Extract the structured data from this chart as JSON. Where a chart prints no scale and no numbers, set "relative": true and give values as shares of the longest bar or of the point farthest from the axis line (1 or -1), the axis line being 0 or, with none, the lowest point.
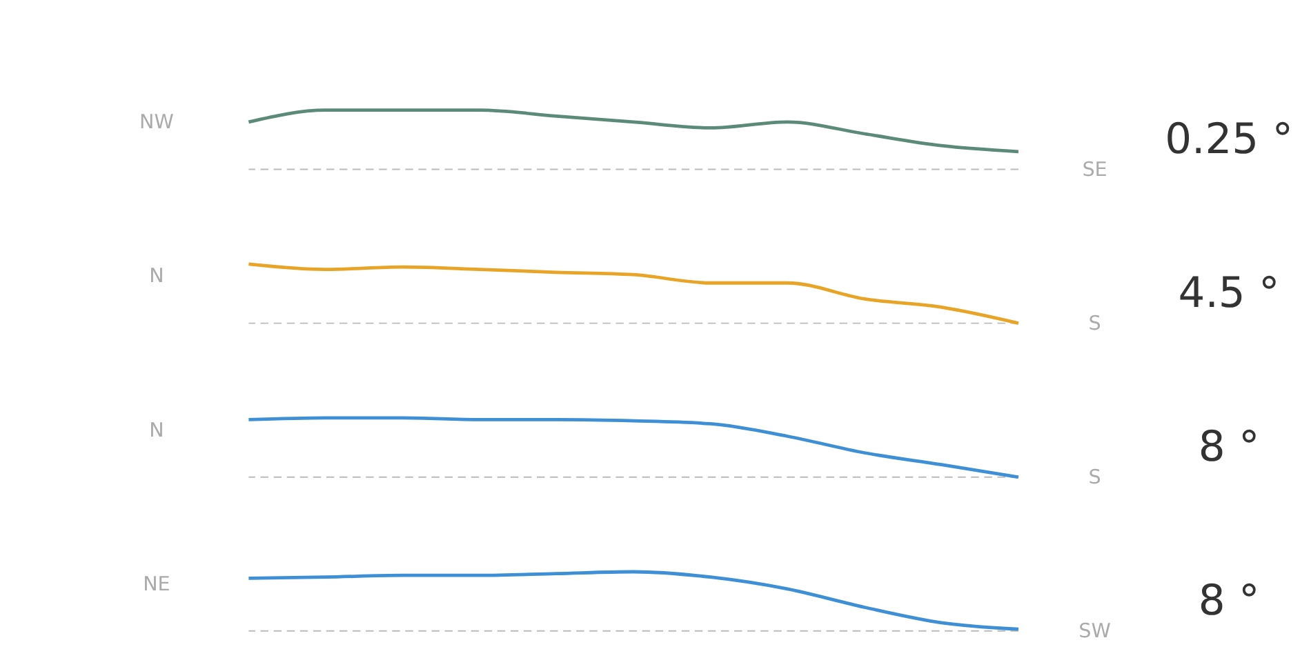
{
  "chart_data": [
    {
      "type": "line",
      "relative": true,
      "categories": [
        null,
        null,
        null,
        null,
        null,
        null,
        null,
        null,
        null,
        null,
        null
      ],
      "series": [
        {
          "color": "#5b8a78",
          "values": [
            0.8,
            1,
            1,
            1,
            0.9,
            0.8,
            0.7,
            0.8,
            0.6,
            0.4,
            0.3
          ]
        }
      ],
      "annotations": [
        "NW",
        "SE",
        "0.25 °"
      ],
      "ref_lines": [
        {
          "axis": "y",
          "value": 0,
          "color": "#bbbbbb",
          "line_style": "dashed"
        }
      ]
    },
    {
      "type": "line",
      "relative": true,
      "categories": [
        null,
        null,
        null,
        null,
        null,
        null,
        null,
        null,
        null,
        null,
        null
      ],
      "series": [
        {
          "color": "#e8a426",
          "values": [
            1,
            0.91,
            0.95,
            0.91,
            0.86,
            0.82,
            0.68,
            0.68,
            0.41,
            0.27,
            0
          ]
        }
      ],
      "annotations": [
        "N",
        "S",
        "4.5 °"
      ],
      "ref_lines": [
        {
          "axis": "y",
          "value": 0,
          "color": "#bbbbbb",
          "line_style": "dashed"
        }
      ]
    },
    {
      "type": "line",
      "relative": true,
      "categories": [
        null,
        null,
        null,
        null,
        null,
        null,
        null,
        null,
        null,
        null,
        null
      ],
      "series": [
        {
          "color": "#3f8fd6",
          "values": [
            0.97,
            1,
            1,
            0.97,
            0.97,
            0.95,
            0.9,
            0.69,
            0.41,
            0.21,
            0
          ]
        }
      ],
      "annotations": [
        "N",
        "S",
        "8 °"
      ],
      "ref_lines": [
        {
          "axis": "y",
          "value": 0,
          "color": "#bbbbbb",
          "line_style": "dashed"
        }
      ]
    },
    {
      "type": "line",
      "relative": true,
      "categories": [
        null,
        null,
        null,
        null,
        null,
        null,
        null,
        null,
        null,
        null,
        null
      ],
      "series": [
        {
          "color": "#3f8fd6",
          "values": [
            0.89,
            0.91,
            0.94,
            0.94,
            0.97,
            1,
            0.91,
            0.71,
            0.4,
            0.14,
            0.03
          ]
        }
      ],
      "annotations": [
        "NE",
        "SW",
        "8 °"
      ],
      "ref_lines": [
        {
          "axis": "y",
          "value": 0,
          "color": "#bbbbbb",
          "line_style": "dashed"
        }
      ]
    }
  ]
}
